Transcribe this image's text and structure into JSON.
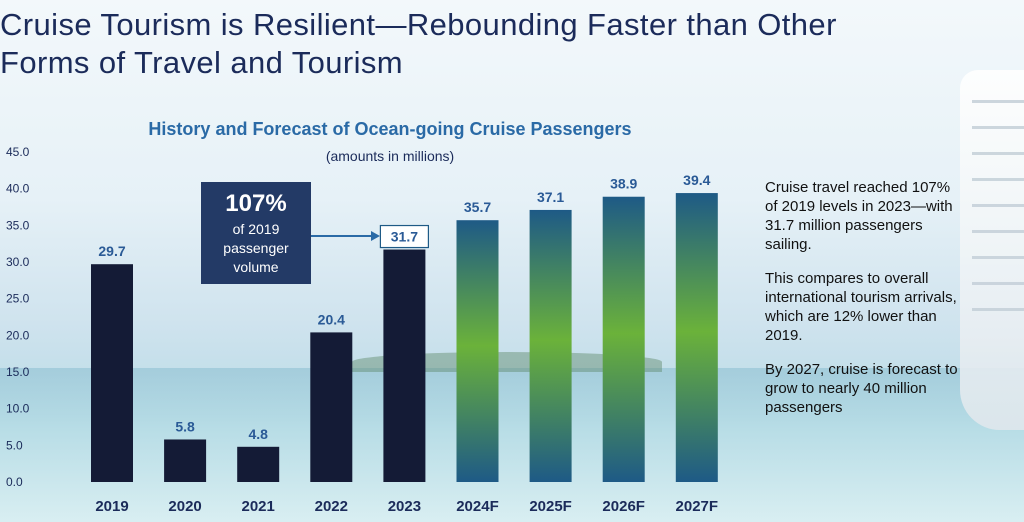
{
  "page": {
    "title": "Cruise Tourism is Resilient—Rebounding Faster than Other Forms of Travel and Tourism"
  },
  "callout": {
    "percent": "107%",
    "text": "of 2019 passenger volume"
  },
  "notes": [
    "Cruise travel reached 107% of 2019 levels in 2023—with 31.7 million passengers sailing.",
    "This compares to overall international tourism arrivals, which are 12% lower than 2019.",
    "By 2027, cruise is forecast to grow to nearly 40 million passengers"
  ],
  "colors": {
    "actual_bar": "#141b36",
    "forecast_top": "#1e5a86",
    "forecast_mid": "#6bb23a",
    "forecast_bottom": "#1e5a86",
    "label": "#2a5a96",
    "text_dark": "#1b2b5a"
  },
  "chart_data": {
    "type": "bar",
    "title": "History and Forecast of Ocean-going Cruise Passengers",
    "subtitle": "(amounts in millions)",
    "xlabel": "",
    "ylabel": "",
    "ylim": [
      0,
      45
    ],
    "yticks": [
      "0.0",
      "5.0",
      "10.0",
      "15.0",
      "20.0",
      "25.0",
      "30.0",
      "35.0",
      "40.0",
      "45.0"
    ],
    "categories": [
      "2019",
      "2020",
      "2021",
      "2022",
      "2023",
      "2024F",
      "2025F",
      "2026F",
      "2027F"
    ],
    "values": [
      29.7,
      5.8,
      4.8,
      20.4,
      31.7,
      35.7,
      37.1,
      38.9,
      39.4
    ],
    "value_labels": [
      "29.7",
      "5.8",
      "4.8",
      "20.4",
      "31.7",
      "35.7",
      "37.1",
      "38.9",
      "39.4"
    ],
    "forecast": [
      false,
      false,
      false,
      false,
      false,
      true,
      true,
      true,
      true
    ],
    "highlight": "2023"
  }
}
